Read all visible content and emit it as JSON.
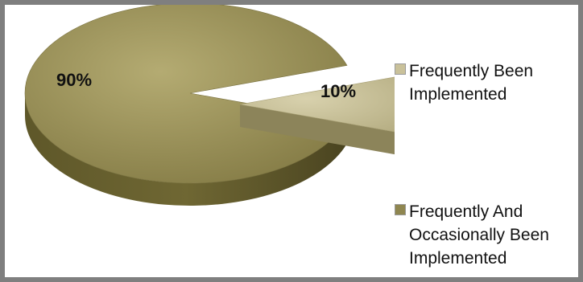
{
  "chart_data": {
    "type": "pie",
    "title": "",
    "series": [
      {
        "name": "Frequently Been Implemented",
        "value": 10,
        "label": "10%",
        "color": "#c9c19a"
      },
      {
        "name": "Frequently And Occasionally Been Implemented",
        "value": 90,
        "label": "90%",
        "color": "#8f8650"
      }
    ],
    "legend_position": "right"
  },
  "legend": {
    "items": [
      {
        "text": "Frequently Been\nImplemented",
        "color": "#c9c19a"
      },
      {
        "text": "Frequently And\nOccasionally Been\nImplemented",
        "color": "#8f8650"
      }
    ]
  }
}
